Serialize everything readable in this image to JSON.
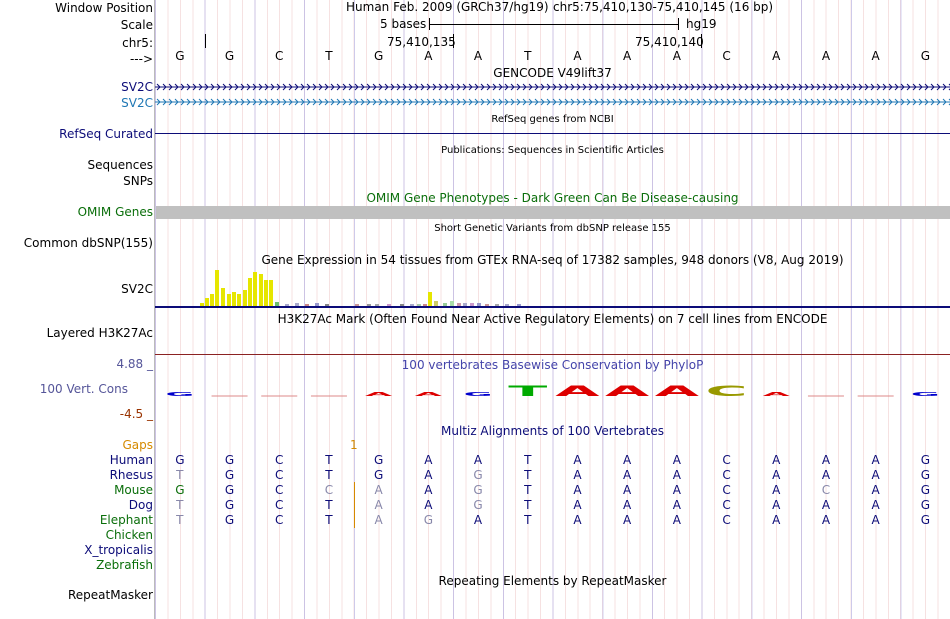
{
  "labels": {
    "window_position": "Window Position",
    "scale": "Scale",
    "chrom": "chr5:",
    "strand": "--->",
    "gene1": "SV2C",
    "gene2": "SV2C",
    "refseq": "RefSeq Curated",
    "sequences": "Sequences",
    "snps": "SNPs",
    "omim": "OMIM Genes",
    "dbsnp": "Common dbSNP(155)",
    "gtex_gene": "SV2C",
    "h3k27ac": "Layered H3K27Ac",
    "cons_max": "4.88 _",
    "cons_label": "100 Vert. Cons",
    "cons_min": "-4.5 _",
    "gaps": "Gaps",
    "species": [
      "Human",
      "Rhesus",
      "Mouse",
      "Dog",
      "Elephant",
      "Chicken",
      "X_tropicalis",
      "Zebrafish"
    ],
    "repeatmasker": "RepeatMasker"
  },
  "header": {
    "assembly": "Human Feb. 2009 (GRCh37/hg19)",
    "position": "chr5:75,410,130-75,410,145 (16 bp)",
    "scale_text": "5 bases",
    "scale_db": "hg19",
    "coord1": "75,410,135",
    "coord2": "75,410,140"
  },
  "bases": [
    "G",
    "G",
    "C",
    "T",
    "G",
    "A",
    "A",
    "T",
    "A",
    "A",
    "A",
    "C",
    "A",
    "A",
    "A",
    "G"
  ],
  "tracks": {
    "gencode": "GENCODE V49lift37",
    "refseq_title": "RefSeq genes from NCBI",
    "pubs_title": "Publications: Sequences in Scientific Articles",
    "omim_title": "OMIM Gene Phenotypes - Dark Green Can Be Disease-causing",
    "dbsnp_title": "Short Genetic Variants from dbSNP release 155",
    "gtex_title": "Gene Expression in 54 tissues from GTEx RNA-seq of 17382 samples, 948 donors (V8, Aug 2019)",
    "h3k27ac_title": "H3K27Ac Mark (Often Found Near Active Regulatory Elements) on 7 cell lines from ENCODE",
    "phylop_title": "100 vertebrates Basewise Conservation by PhyloP",
    "multiz_title": "Multiz Alignments of 100 Vertebrates",
    "repeat_title": "Repeating Elements by RepeatMasker",
    "gap_count": "1"
  },
  "phylop_letters": [
    "G",
    "",
    "",
    "",
    "A",
    "A",
    "G",
    "T",
    "A",
    "A",
    "A",
    "C",
    "A",
    "",
    "",
    "G"
  ],
  "alignment": {
    "Human": [
      "G",
      "G",
      "C",
      "T",
      "G",
      "A",
      "A",
      "T",
      "A",
      "A",
      "A",
      "C",
      "A",
      "A",
      "A",
      "G"
    ],
    "Rhesus": [
      "T",
      "G",
      "C",
      "T",
      "G",
      "A",
      "G",
      "T",
      "A",
      "A",
      "A",
      "C",
      "A",
      "A",
      "A",
      "G"
    ],
    "Mouse": [
      "G",
      "G",
      "C",
      "C",
      "A",
      "A",
      "G",
      "T",
      "A",
      "A",
      "A",
      "C",
      "A",
      "C",
      "A",
      "G"
    ],
    "Dog": [
      "T",
      "G",
      "C",
      "T",
      "A",
      "A",
      "G",
      "T",
      "A",
      "A",
      "A",
      "C",
      "A",
      "A",
      "A",
      "G"
    ],
    "Elephant": [
      "T",
      "G",
      "C",
      "T",
      "A",
      "G",
      "A",
      "T",
      "A",
      "A",
      "A",
      "C",
      "A",
      "A",
      "A",
      "G"
    ]
  },
  "colors": {
    "navy": "#0c0c78",
    "gtex_yellow": "#e6e600",
    "omim_gray": "#c0c0c0",
    "phylop_blue": "#0000cc",
    "phylop_red": "#dd0000",
    "phylop_green": "#00aa00",
    "phylop_olive": "#999900"
  }
}
